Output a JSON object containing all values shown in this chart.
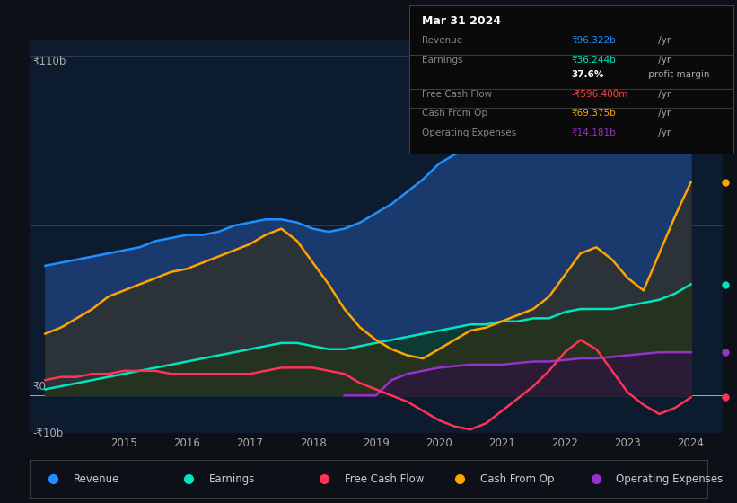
{
  "bg_color": "#0d1117",
  "plot_bg_color": "#0d1b2e",
  "ylabel_top": "₹110b",
  "ylabel_zero": "₹0",
  "ylabel_neg": "-₹10b",
  "xlim": [
    2013.5,
    2024.5
  ],
  "ylim": [
    -12,
    115
  ],
  "x_ticks": [
    2015,
    2016,
    2017,
    2018,
    2019,
    2020,
    2021,
    2022,
    2023,
    2024
  ],
  "hline_positions": [
    110,
    55,
    0
  ],
  "series": {
    "revenue": {
      "color": "#1e90ff",
      "fill_color": "#1a3a6e",
      "label": "Revenue",
      "x": [
        2013.75,
        2014.0,
        2014.25,
        2014.5,
        2014.75,
        2015.0,
        2015.25,
        2015.5,
        2015.75,
        2016.0,
        2016.25,
        2016.5,
        2016.75,
        2017.0,
        2017.25,
        2017.5,
        2017.75,
        2018.0,
        2018.25,
        2018.5,
        2018.75,
        2019.0,
        2019.25,
        2019.5,
        2019.75,
        2020.0,
        2020.25,
        2020.5,
        2020.75,
        2021.0,
        2021.25,
        2021.5,
        2021.75,
        2022.0,
        2022.25,
        2022.5,
        2022.75,
        2023.0,
        2023.25,
        2023.5,
        2023.75,
        2024.0
      ],
      "y": [
        42,
        43,
        44,
        45,
        46,
        47,
        48,
        50,
        51,
        52,
        52,
        53,
        55,
        56,
        57,
        57,
        56,
        54,
        53,
        54,
        56,
        59,
        62,
        66,
        70,
        75,
        78,
        80,
        82,
        83,
        84,
        83,
        82,
        84,
        86,
        87,
        85,
        82,
        85,
        90,
        95,
        96
      ]
    },
    "earnings": {
      "color": "#00e5c0",
      "fill_color": "#0d3a35",
      "label": "Earnings",
      "x": [
        2013.75,
        2014.0,
        2014.25,
        2014.5,
        2014.75,
        2015.0,
        2015.25,
        2015.5,
        2015.75,
        2016.0,
        2016.25,
        2016.5,
        2016.75,
        2017.0,
        2017.25,
        2017.5,
        2017.75,
        2018.0,
        2018.25,
        2018.5,
        2018.75,
        2019.0,
        2019.25,
        2019.5,
        2019.75,
        2020.0,
        2020.25,
        2020.5,
        2020.75,
        2021.0,
        2021.25,
        2021.5,
        2021.75,
        2022.0,
        2022.25,
        2022.5,
        2022.75,
        2023.0,
        2023.25,
        2023.5,
        2023.75,
        2024.0
      ],
      "y": [
        2,
        3,
        4,
        5,
        6,
        7,
        8,
        9,
        10,
        11,
        12,
        13,
        14,
        15,
        16,
        17,
        17,
        16,
        15,
        15,
        16,
        17,
        18,
        19,
        20,
        21,
        22,
        23,
        23,
        24,
        24,
        25,
        25,
        27,
        28,
        28,
        28,
        29,
        30,
        31,
        33,
        36
      ]
    },
    "cash_from_op": {
      "color": "#ffa500",
      "fill_color": "#3a2d0d",
      "label": "Cash From Op",
      "x": [
        2013.75,
        2014.0,
        2014.25,
        2014.5,
        2014.75,
        2015.0,
        2015.25,
        2015.5,
        2015.75,
        2016.0,
        2016.25,
        2016.5,
        2016.75,
        2017.0,
        2017.25,
        2017.5,
        2017.75,
        2018.0,
        2018.25,
        2018.5,
        2018.75,
        2019.0,
        2019.25,
        2019.5,
        2019.75,
        2020.0,
        2020.25,
        2020.5,
        2020.75,
        2021.0,
        2021.25,
        2021.5,
        2021.75,
        2022.0,
        2022.25,
        2022.5,
        2022.75,
        2023.0,
        2023.25,
        2023.5,
        2023.75,
        2024.0
      ],
      "y": [
        20,
        22,
        25,
        28,
        32,
        34,
        36,
        38,
        40,
        41,
        43,
        45,
        47,
        49,
        52,
        54,
        50,
        43,
        36,
        28,
        22,
        18,
        15,
        13,
        12,
        15,
        18,
        21,
        22,
        24,
        26,
        28,
        32,
        39,
        46,
        48,
        44,
        38,
        34,
        46,
        58,
        69
      ]
    },
    "operating_expenses": {
      "color": "#9932cc",
      "fill_color": "#2d1045",
      "label": "Operating Expenses",
      "x": [
        2018.5,
        2018.75,
        2019.0,
        2019.25,
        2019.5,
        2019.75,
        2020.0,
        2020.25,
        2020.5,
        2020.75,
        2021.0,
        2021.25,
        2021.5,
        2021.75,
        2022.0,
        2022.25,
        2022.5,
        2022.75,
        2023.0,
        2023.25,
        2023.5,
        2023.75,
        2024.0
      ],
      "y": [
        0,
        0,
        0,
        5,
        7,
        8,
        9,
        9.5,
        10,
        10,
        10,
        10.5,
        11,
        11,
        11.5,
        12,
        12,
        12.5,
        13,
        13.5,
        14,
        14,
        14
      ]
    },
    "free_cash_flow": {
      "color": "#ff3355",
      "label": "Free Cash Flow",
      "x": [
        2013.75,
        2014.0,
        2014.25,
        2014.5,
        2014.75,
        2015.0,
        2015.25,
        2015.5,
        2015.75,
        2016.0,
        2016.25,
        2016.5,
        2016.75,
        2017.0,
        2017.25,
        2017.5,
        2017.75,
        2018.0,
        2018.25,
        2018.5,
        2018.75,
        2019.0,
        2019.25,
        2019.5,
        2019.75,
        2020.0,
        2020.25,
        2020.5,
        2020.75,
        2021.0,
        2021.25,
        2021.5,
        2021.75,
        2022.0,
        2022.25,
        2022.5,
        2022.75,
        2023.0,
        2023.25,
        2023.5,
        2023.75,
        2024.0
      ],
      "y": [
        5,
        6,
        6,
        7,
        7,
        8,
        8,
        8,
        7,
        7,
        7,
        7,
        7,
        7,
        8,
        9,
        9,
        9,
        8,
        7,
        4,
        2,
        0,
        -2,
        -5,
        -8,
        -10,
        -11,
        -9,
        -5,
        -1,
        3,
        8,
        14,
        18,
        15,
        8,
        1,
        -3,
        -6,
        -4,
        -0.6
      ]
    }
  },
  "legend": [
    {
      "label": "Revenue",
      "color": "#1e90ff"
    },
    {
      "label": "Earnings",
      "color": "#00e5c0"
    },
    {
      "label": "Free Cash Flow",
      "color": "#ff3355"
    },
    {
      "label": "Cash From Op",
      "color": "#ffa500"
    },
    {
      "label": "Operating Expenses",
      "color": "#9932cc"
    }
  ],
  "info_box_rows": [
    {
      "label": "Revenue",
      "value": "₹96.322b",
      "suffix": " /yr",
      "value_color": "#1e90ff",
      "bold": false
    },
    {
      "label": "Earnings",
      "value": "₹36.244b",
      "suffix": " /yr",
      "value_color": "#00e5c0",
      "bold": false
    },
    {
      "label": "",
      "value": "37.6%",
      "suffix": " profit margin",
      "value_color": "#ffffff",
      "bold": true
    },
    {
      "label": "Free Cash Flow",
      "value": "-₹596.400m",
      "suffix": " /yr",
      "value_color": "#ff4444",
      "bold": false
    },
    {
      "label": "Cash From Op",
      "value": "₹69.375b",
      "suffix": " /yr",
      "value_color": "#ffa500",
      "bold": false
    },
    {
      "label": "Operating Expenses",
      "value": "₹14.181b",
      "suffix": " /yr",
      "value_color": "#9932cc",
      "bold": false
    }
  ]
}
